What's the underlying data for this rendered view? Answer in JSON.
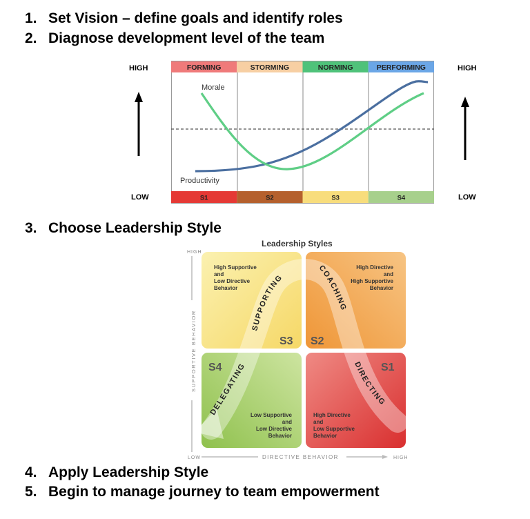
{
  "steps": {
    "s1": {
      "num": "1.",
      "text": "Set Vision – define goals and identify roles"
    },
    "s2": {
      "num": "2.",
      "text": "Diagnose development level of the team"
    },
    "s3": {
      "num": "3.",
      "text": "Choose Leadership Style"
    },
    "s4": {
      "num": "4.",
      "text": "Apply Leadership Style"
    },
    "s5": {
      "num": "5.",
      "text": "Begin to manage journey to team empowerment"
    }
  },
  "team_chart": {
    "high_left": "HIGH",
    "high_right": "HIGH",
    "low_left": "LOW",
    "low_right": "LOW",
    "stages": [
      {
        "label": "FORMING",
        "color": "#ef7a7a"
      },
      {
        "label": "STORMING",
        "color": "#f7cfa3"
      },
      {
        "label": "NORMING",
        "color": "#4fc27a"
      },
      {
        "label": "PERFORMING",
        "color": "#6ba6e6"
      }
    ],
    "styles": [
      {
        "label": "S1",
        "color": "#e53935"
      },
      {
        "label": "S2",
        "color": "#b5602d"
      },
      {
        "label": "S3",
        "color": "#f8dd7c"
      },
      {
        "label": "S4",
        "color": "#a7d08c"
      }
    ],
    "morale_label": "Morale",
    "productivity_label": "Productivity",
    "morale_color": "#5fce86",
    "productivity_color": "#4b6fa0"
  },
  "leadership": {
    "title": "Leadership Styles",
    "y_high": "HIGH",
    "y_axis": "SUPPORTIVE BEHAVIOR",
    "x_low": "LOW",
    "x_axis": "DIRECTIVE BEHAVIOR",
    "x_high": "HIGH",
    "q_s3": {
      "code": "S3",
      "desc": [
        "High Supportive",
        "and",
        "Low Directive",
        "Behavior"
      ],
      "arrow": "SUPPORTING"
    },
    "q_s2": {
      "code": "S2",
      "desc": [
        "High Directive",
        "and",
        "High Supportive",
        "Behavior"
      ],
      "arrow": "COACHING"
    },
    "q_s4": {
      "code": "S4",
      "desc": [
        "Low Supportive",
        "and",
        "Low Directive",
        "Behavior"
      ],
      "arrow": "DELEGATING"
    },
    "q_s1": {
      "code": "S1",
      "desc": [
        "High Directive",
        "and",
        "Low Supportive",
        "Behavior"
      ],
      "arrow": "DIRECTING"
    }
  }
}
